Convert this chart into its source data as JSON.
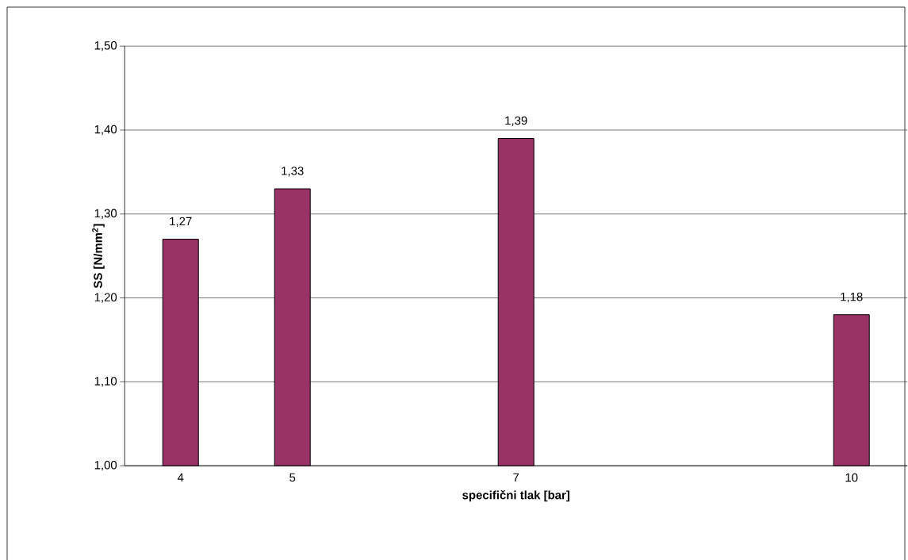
{
  "chart_data": {
    "type": "bar",
    "xlabel": "specifični tlak [bar]",
    "ylabel": "SS [N/mm$^{2}$]",
    "categories": [
      "4",
      "5",
      null,
      "7",
      null,
      null,
      "10"
    ],
    "values": [
      1.27,
      1.33,
      null,
      1.39,
      null,
      null,
      1.18
    ],
    "value_labels": [
      "1,27",
      "1,33",
      null,
      "1,39",
      null,
      null,
      "1,18"
    ],
    "color": "#993366",
    "ylim": [
      1.0,
      1.5
    ],
    "yticks": [
      {
        "value": 1.0,
        "label": "1,00"
      },
      {
        "value": 1.1,
        "label": "1,10"
      },
      {
        "value": 1.2,
        "label": "1,20"
      },
      {
        "value": 1.3,
        "label": "1,30"
      },
      {
        "value": 1.4,
        "label": "1,40"
      },
      {
        "value": 1.5,
        "label": "1,50"
      }
    ],
    "grid": "y"
  }
}
